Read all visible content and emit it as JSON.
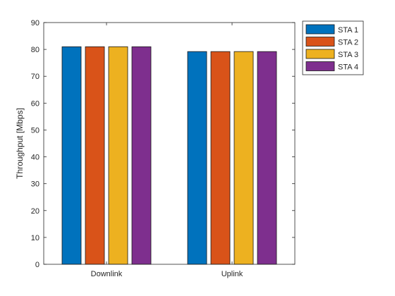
{
  "chart_data": {
    "type": "bar",
    "categories": [
      "Downlink",
      "Uplink"
    ],
    "series": [
      {
        "name": "STA 1",
        "values": [
          81,
          79.2
        ],
        "color": "#0072BD"
      },
      {
        "name": "STA 2",
        "values": [
          81,
          79.2
        ],
        "color": "#D95319"
      },
      {
        "name": "STA 3",
        "values": [
          81,
          79.2
        ],
        "color": "#EDB120"
      },
      {
        "name": "STA 4",
        "values": [
          81,
          79.2
        ],
        "color": "#7E2F8E"
      }
    ],
    "xlabel": "",
    "ylabel": "Throughput [Mbps]",
    "ylim": [
      0,
      90
    ],
    "yticks": [
      0,
      10,
      20,
      30,
      40,
      50,
      60,
      70,
      80,
      90
    ],
    "grid": false,
    "legend_position": "outside-top-right"
  }
}
